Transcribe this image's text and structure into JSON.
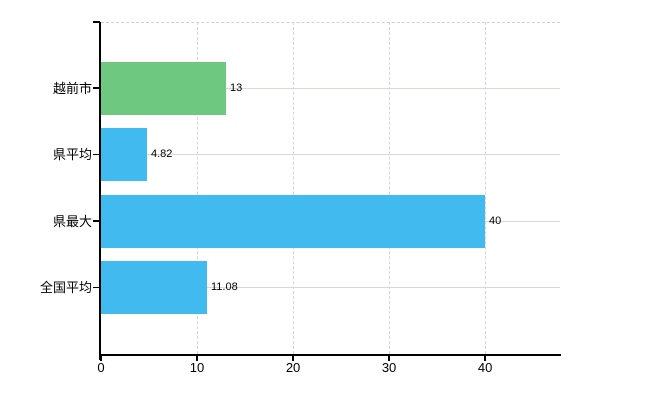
{
  "chart_data": {
    "type": "bar",
    "orientation": "horizontal",
    "categories": [
      "越前市",
      "県平均",
      "県最大",
      "全国平均"
    ],
    "values": [
      13,
      4.82,
      40,
      11.08
    ],
    "value_labels": [
      "13",
      "4.82",
      "40",
      "11.08"
    ],
    "bar_colors": [
      "#6fc87f",
      "#41baef",
      "#41baef",
      "#41baef"
    ],
    "xticks": [
      0,
      10,
      20,
      30,
      40
    ],
    "xtick_labels": [
      "0",
      "10",
      "20",
      "30",
      "40"
    ],
    "xlim": [
      0,
      47.8
    ],
    "legend": null,
    "grid": {
      "horizontal_style": "solid",
      "vertical_style": "dashed",
      "top_border_style": "dashed"
    }
  },
  "colors": {
    "background": "#ffffff",
    "axis": "#000000",
    "text": "#000000",
    "grid_horizontal": "#d6dcd4",
    "grid_vertical": "#d8d5d2",
    "top_border": "#d3d0cc",
    "bar_green": "#6fc87f",
    "bar_blue": "#41baef"
  }
}
